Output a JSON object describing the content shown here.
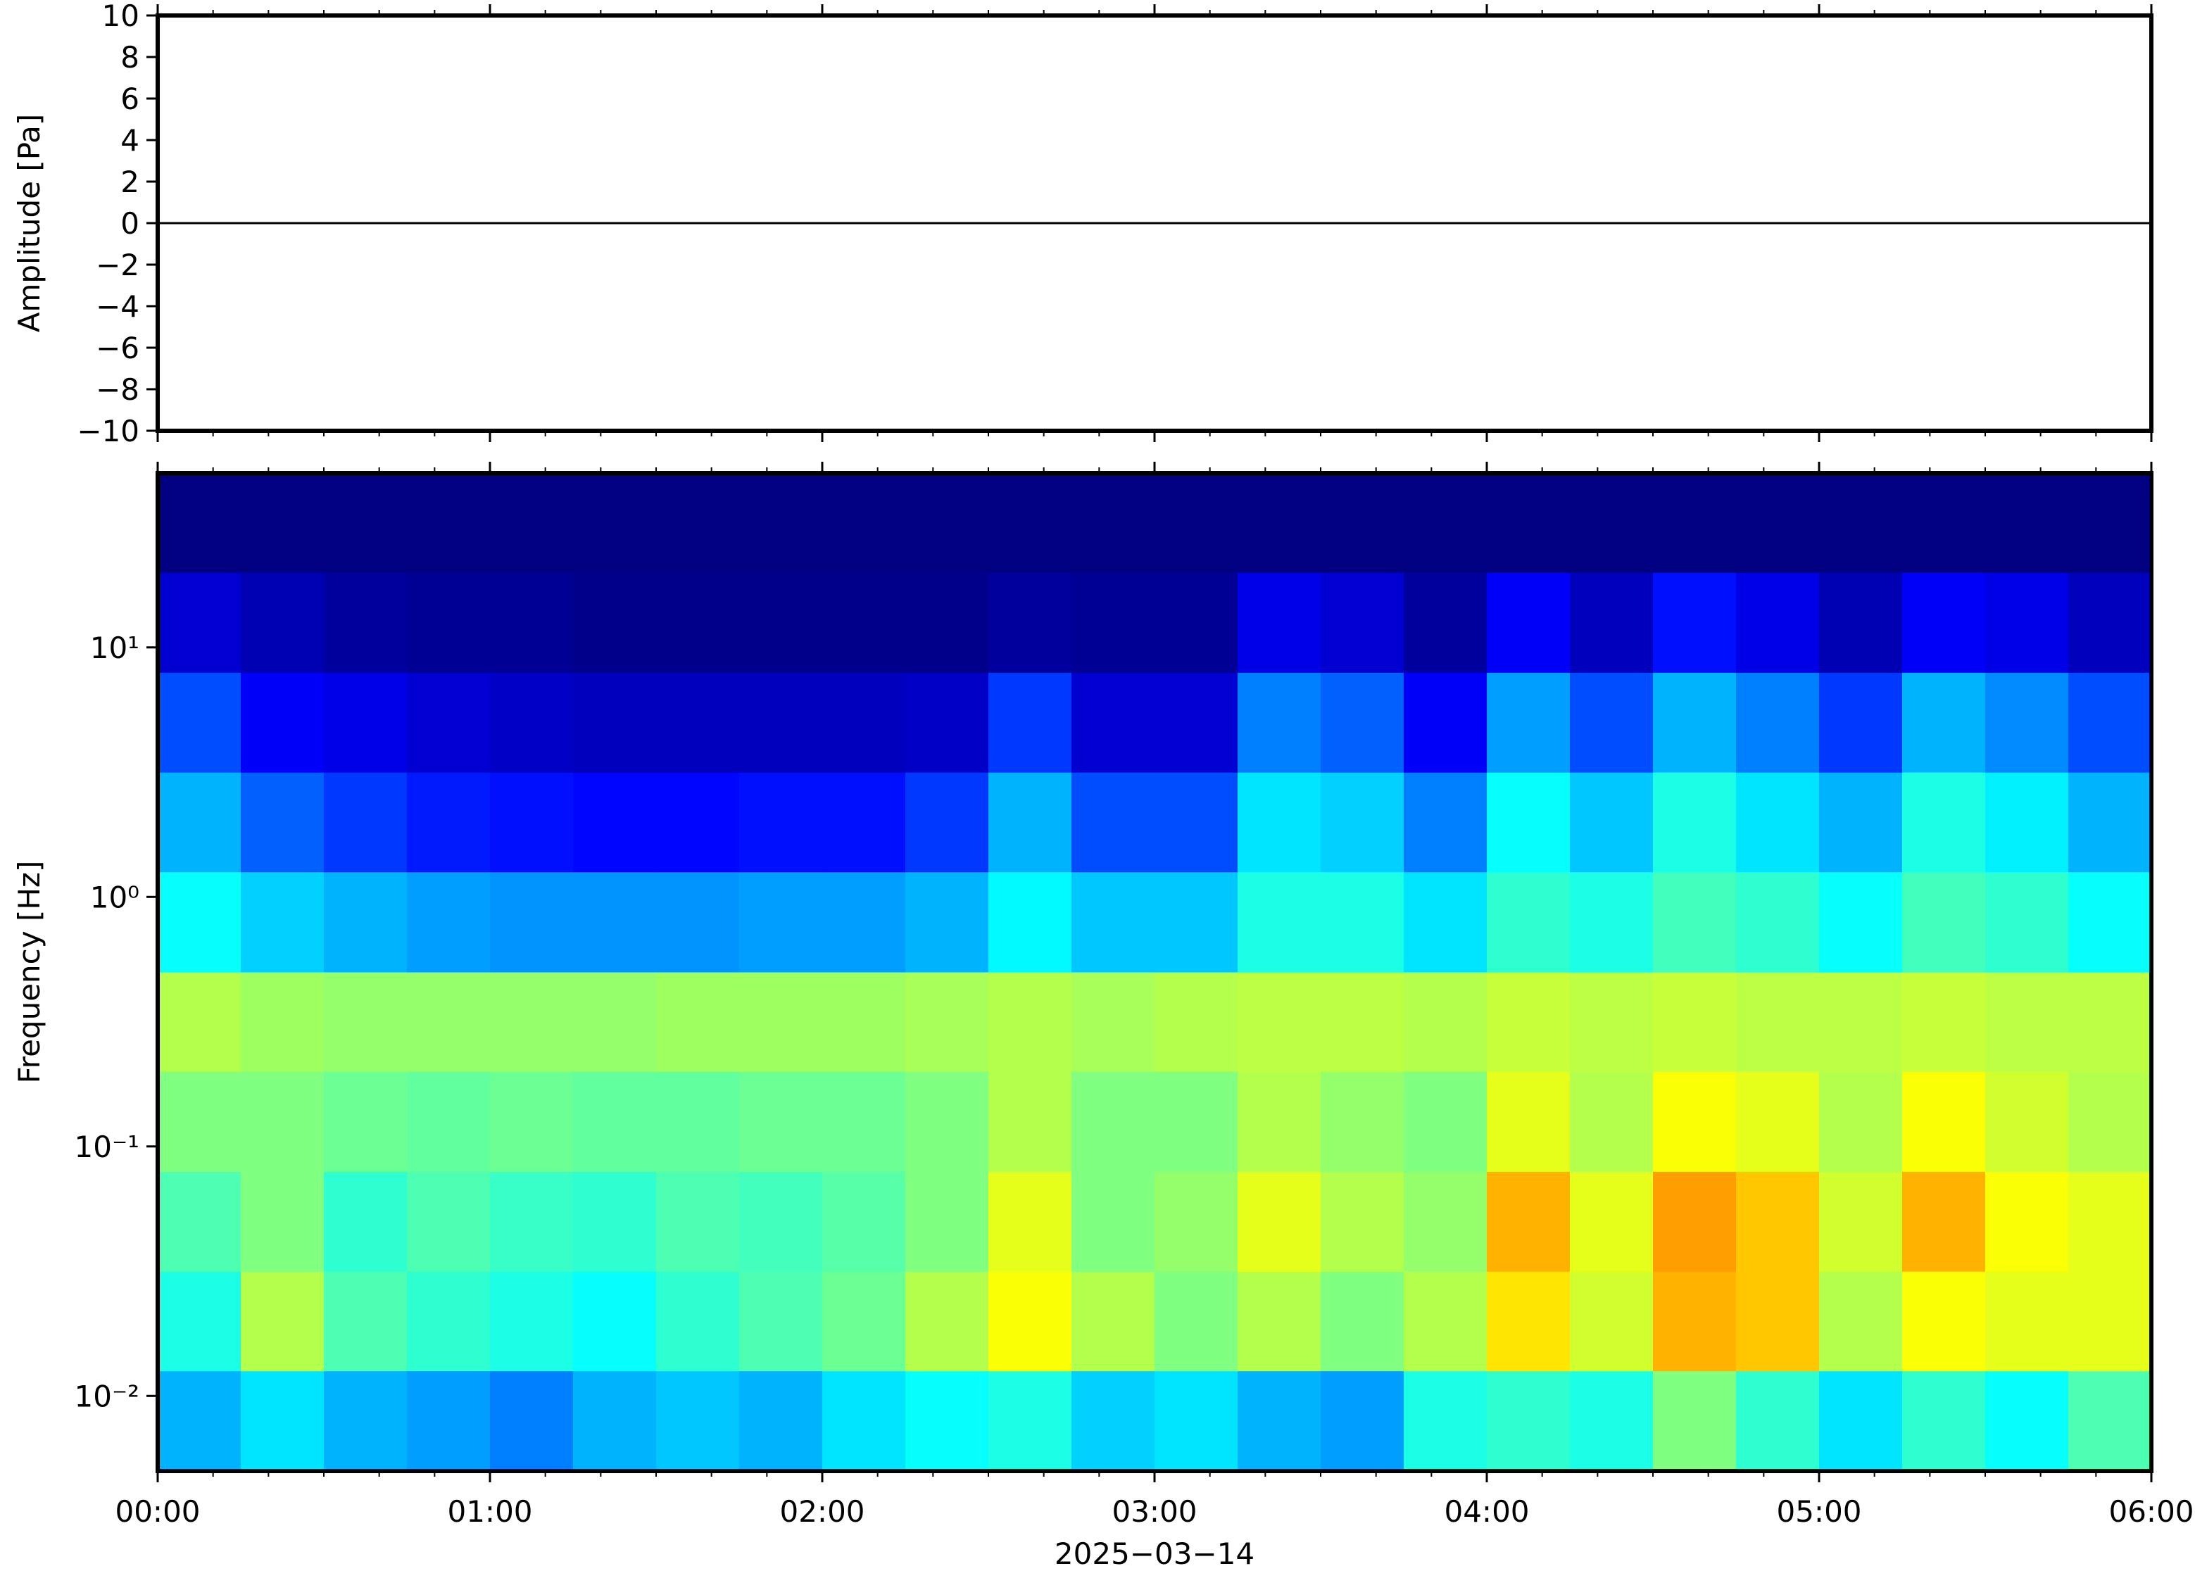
{
  "chart_data": [
    {
      "type": "line",
      "ylabel": "Amplitude [Pa]",
      "xlim": [
        0,
        6
      ],
      "xticks": [
        0,
        1,
        2,
        3,
        4,
        5,
        6
      ],
      "ylim": [
        -10,
        10
      ],
      "yticks": [
        {
          "value": -10,
          "label": "−10"
        },
        {
          "value": -8,
          "label": "−8"
        },
        {
          "value": -6,
          "label": "−6"
        },
        {
          "value": -4,
          "label": "−4"
        },
        {
          "value": -2,
          "label": "−2"
        },
        0,
        2,
        4,
        6,
        8,
        10
      ],
      "x": [
        0,
        0.5,
        1,
        1.5,
        2,
        2.5,
        3,
        3.5,
        4,
        4.5,
        5,
        5.5,
        6
      ],
      "series": [
        {
          "color": "#000000",
          "values": [
            0,
            0,
            0,
            0,
            0,
            0,
            0,
            0,
            0,
            0,
            0,
            0,
            0
          ]
        }
      ]
    },
    {
      "type": "heatmap",
      "ylabel": "Frequency [Hz]",
      "xlabel": "2025−03−14",
      "xlim": [
        0,
        6
      ],
      "xticks": [
        {
          "value": 0,
          "label": "00:00"
        },
        {
          "value": 1,
          "label": "01:00"
        },
        {
          "value": 2,
          "label": "02:00"
        },
        {
          "value": 3,
          "label": "03:00"
        },
        {
          "value": 4,
          "label": "04:00"
        },
        {
          "value": 5,
          "label": "05:00"
        },
        {
          "value": 6,
          "label": "06:00"
        }
      ],
      "ylim": [
        0.005,
        50
      ],
      "log_y": true,
      "yticks": [
        {
          "value": 0.01,
          "label": "10⁻²"
        },
        {
          "value": 0.1,
          "label": "10⁻¹"
        },
        {
          "value": 1,
          "label": "10⁰"
        },
        {
          "value": 10,
          "label": "10¹"
        }
      ],
      "colormap": "jet",
      "zlim": [
        0,
        1
      ],
      "x_edges": [
        0,
        0.25,
        0.5,
        0.75,
        1,
        1.25,
        1.5,
        1.75,
        2,
        2.25,
        2.5,
        2.75,
        3,
        3.25,
        3.5,
        3.75,
        4,
        4.25,
        4.5,
        4.75,
        5,
        5.25,
        5.5,
        5.75,
        6
      ],
      "y_edges": [
        0.005,
        0.0126,
        0.0316,
        0.0794,
        0.2,
        0.5,
        1.26,
        3.16,
        7.94,
        20,
        50
      ],
      "z": [
        [
          0.3,
          0.35,
          0.3,
          0.28,
          0.25,
          0.3,
          0.32,
          0.3,
          0.35,
          0.38,
          0.4,
          0.33,
          0.35,
          0.3,
          0.28,
          0.4,
          0.42,
          0.4,
          0.5,
          0.42,
          0.35,
          0.42,
          0.38,
          0.45
        ],
        [
          0.4,
          0.55,
          0.45,
          0.42,
          0.4,
          0.38,
          0.42,
          0.45,
          0.48,
          0.55,
          0.62,
          0.55,
          0.5,
          0.55,
          0.5,
          0.55,
          0.65,
          0.58,
          0.7,
          0.68,
          0.55,
          0.62,
          0.6,
          0.6
        ],
        [
          0.45,
          0.5,
          0.42,
          0.45,
          0.43,
          0.42,
          0.45,
          0.44,
          0.46,
          0.5,
          0.6,
          0.5,
          0.52,
          0.6,
          0.55,
          0.52,
          0.7,
          0.6,
          0.72,
          0.68,
          0.58,
          0.7,
          0.62,
          0.6
        ],
        [
          0.5,
          0.5,
          0.48,
          0.47,
          0.48,
          0.47,
          0.47,
          0.48,
          0.48,
          0.5,
          0.55,
          0.5,
          0.5,
          0.55,
          0.52,
          0.5,
          0.6,
          0.55,
          0.62,
          0.6,
          0.55,
          0.62,
          0.58,
          0.55
        ],
        [
          0.55,
          0.53,
          0.52,
          0.52,
          0.52,
          0.52,
          0.53,
          0.53,
          0.53,
          0.54,
          0.55,
          0.54,
          0.55,
          0.56,
          0.56,
          0.55,
          0.57,
          0.56,
          0.57,
          0.56,
          0.56,
          0.57,
          0.56,
          0.56
        ],
        [
          0.38,
          0.33,
          0.3,
          0.28,
          0.27,
          0.27,
          0.27,
          0.28,
          0.28,
          0.3,
          0.37,
          0.32,
          0.32,
          0.4,
          0.4,
          0.35,
          0.42,
          0.4,
          0.44,
          0.42,
          0.38,
          0.44,
          0.42,
          0.38
        ],
        [
          0.3,
          0.22,
          0.18,
          0.15,
          0.14,
          0.13,
          0.13,
          0.14,
          0.14,
          0.18,
          0.3,
          0.2,
          0.2,
          0.35,
          0.33,
          0.25,
          0.38,
          0.32,
          0.4,
          0.35,
          0.3,
          0.4,
          0.36,
          0.3
        ],
        [
          0.2,
          0.12,
          0.1,
          0.08,
          0.07,
          0.06,
          0.06,
          0.06,
          0.06,
          0.07,
          0.18,
          0.08,
          0.08,
          0.25,
          0.22,
          0.12,
          0.28,
          0.2,
          0.3,
          0.25,
          0.18,
          0.3,
          0.26,
          0.2
        ],
        [
          0.08,
          0.05,
          0.03,
          0.02,
          0.02,
          0.01,
          0.01,
          0.01,
          0.01,
          0.01,
          0.03,
          0.02,
          0.02,
          0.1,
          0.08,
          0.03,
          0.12,
          0.06,
          0.14,
          0.1,
          0.05,
          0.12,
          0.1,
          0.06
        ],
        [
          0,
          0,
          0,
          0,
          0,
          0,
          0,
          0,
          0,
          0,
          0,
          0,
          0,
          0,
          0,
          0,
          0,
          0,
          0,
          0,
          0,
          0,
          0,
          0
        ]
      ]
    }
  ]
}
